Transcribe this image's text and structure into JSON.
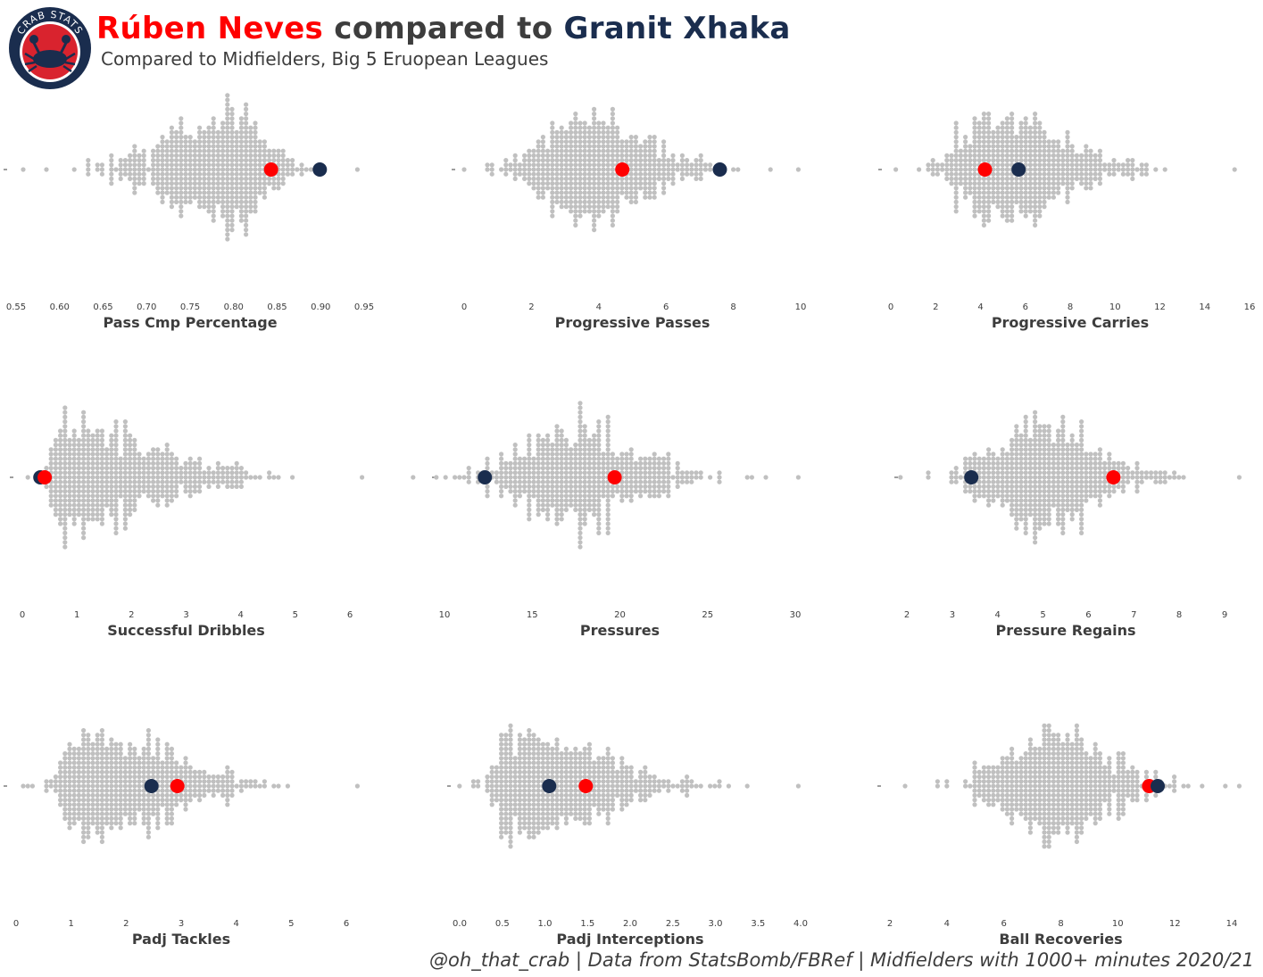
{
  "header": {
    "player_a": "Rúben Neves",
    "connector": " compared to ",
    "player_b": "Granit Xhaka",
    "subtitle": "Compared to Midfielders, Big 5 Eruopean Leagues",
    "logo_text": "CRAB STATS"
  },
  "footer": {
    "credit": "@oh_that_crab | Data from StatsBomb/FBRef | Midfielders with 1000+ minutes 2020/21"
  },
  "colors": {
    "player_a": "#ff0000",
    "player_b": "#1a2d4e",
    "population": "#c0c0c0",
    "text": "#3d3d3d",
    "logo_ring": "#1a2d4e",
    "logo_fill": "#d9232e"
  },
  "chart_data": [
    {
      "type": "scatter",
      "style": "swarm",
      "xlabel": "Pass Cmp Percentage",
      "xlim": [
        0.55,
        0.95
      ],
      "ticks": [
        "0.55",
        "0.60",
        "0.65",
        "0.70",
        "0.75",
        "0.80",
        "0.85",
        "0.90",
        "0.95"
      ],
      "population_range": [
        0.56,
        0.94
      ],
      "population_mode": 0.79,
      "player_a": 0.843,
      "player_b": 0.899
    },
    {
      "type": "scatter",
      "style": "swarm",
      "xlabel": "Progressive Passes",
      "xlim": [
        0,
        10
      ],
      "ticks": [
        "0",
        "2",
        "4",
        "6",
        "8",
        "10"
      ],
      "population_range": [
        0,
        9.9
      ],
      "population_mode": 3.3,
      "player_a": 4.7,
      "player_b": 7.6
    },
    {
      "type": "scatter",
      "style": "swarm",
      "xlabel": "Progressive Carries",
      "xlim": [
        0,
        16
      ],
      "ticks": [
        "0",
        "2",
        "4",
        "6",
        "8",
        "10",
        "12",
        "14",
        "16"
      ],
      "population_range": [
        0.3,
        15.4
      ],
      "population_mode": 4.5,
      "player_a": 4.2,
      "player_b": 5.7
    },
    {
      "type": "scatter",
      "style": "swarm",
      "xlabel": "Successful Dribbles",
      "xlim": [
        0,
        6.2
      ],
      "ticks": [
        "0",
        "1",
        "2",
        "3",
        "4",
        "5",
        "6"
      ],
      "population_range": [
        0.1,
        6.2
      ],
      "population_mode": 0.7,
      "player_a": 0.41,
      "player_b": 0.33
    },
    {
      "type": "scatter",
      "style": "swarm",
      "xlabel": "Pressures",
      "xlim": [
        7,
        30.2
      ],
      "ticks": [
        "10",
        "15",
        "20",
        "25",
        "30"
      ],
      "population_range": [
        8.2,
        30.1
      ],
      "population_mode": 17.2,
      "player_a": 19.7,
      "player_b": 12.3
    },
    {
      "type": "scatter",
      "style": "swarm",
      "xlabel": "Pressure Regains",
      "xlim": [
        1.8,
        9.3
      ],
      "ticks": [
        "2",
        "3",
        "4",
        "5",
        "6",
        "7",
        "8",
        "9"
      ],
      "population_range": [
        1.9,
        9.3
      ],
      "population_mode": 4.8,
      "player_a": 6.55,
      "player_b": 3.42
    },
    {
      "type": "scatter",
      "style": "swarm",
      "xlabel": "Padj Tackles",
      "xlim": [
        0,
        6.25
      ],
      "ticks": [
        "0",
        "1",
        "2",
        "3",
        "4",
        "5",
        "6"
      ],
      "population_range": [
        0.1,
        6.2
      ],
      "population_mode": 1.3,
      "player_a": 2.93,
      "player_b": 2.46
    },
    {
      "type": "scatter",
      "style": "swarm",
      "xlabel": "Padj Interceptions",
      "xlim": [
        0,
        4.0
      ],
      "ticks": [
        "0.0",
        "0.5",
        "1.0",
        "1.5",
        "2.0",
        "2.5",
        "3.0",
        "3.5",
        "4.0"
      ],
      "population_range": [
        0.0,
        3.95
      ],
      "population_mode": 0.65,
      "player_a": 1.48,
      "player_b": 1.05
    },
    {
      "type": "scatter",
      "style": "swarm",
      "xlabel": "Ball Recoveries",
      "xlim": [
        2,
        14.2
      ],
      "ticks": [
        "2",
        "4",
        "6",
        "8",
        "10",
        "12",
        "14"
      ],
      "population_range": [
        2.6,
        14.2
      ],
      "population_mode": 7.8,
      "player_a": 11.1,
      "player_b": 11.4
    }
  ]
}
